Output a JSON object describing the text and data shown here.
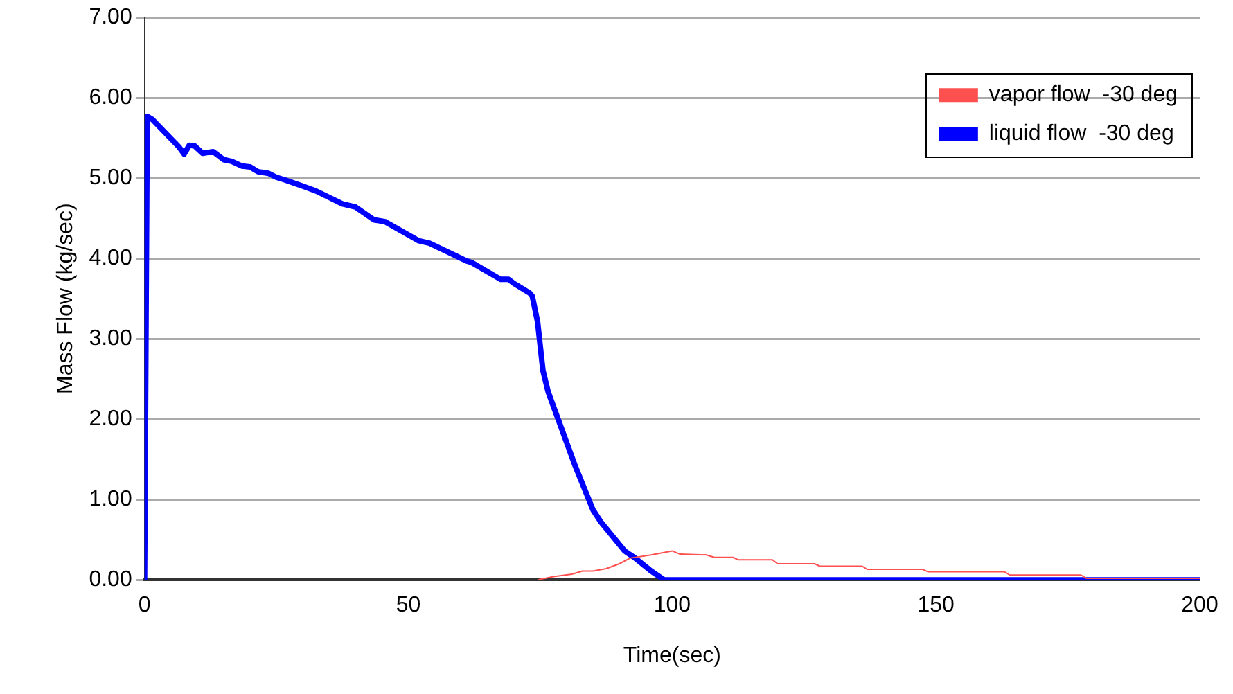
{
  "chart_data": {
    "type": "line",
    "xlabel": "Time(sec)",
    "ylabel": "Mass Flow (kg/sec)",
    "xlim": [
      0,
      200
    ],
    "xticks": [
      0,
      50,
      100,
      150,
      200
    ],
    "ylim": [
      0,
      7
    ],
    "yticks": [
      {
        "value": 0,
        "label": "0.00"
      },
      {
        "value": 1,
        "label": "1.00"
      },
      {
        "value": 2,
        "label": "2.00"
      },
      {
        "value": 3,
        "label": "3.00"
      },
      {
        "value": 4,
        "label": "4.00"
      },
      {
        "value": 5,
        "label": "5.00"
      },
      {
        "value": 6,
        "label": "6.00"
      },
      {
        "value": 7,
        "label": "7.00"
      }
    ],
    "grid": "y",
    "legend": "top right",
    "marker": "none",
    "line_style": "solid",
    "series": [
      {
        "name": "vapor flow  -30 deg",
        "color": "#ff5050",
        "x": [
          74.5,
          77.5,
          81,
          83,
          85,
          87.5,
          90,
          92,
          96,
          100,
          101.5,
          106.5,
          108,
          111.5,
          112.5,
          119,
          120,
          127,
          128,
          136,
          137,
          147.5,
          148.5,
          163,
          164,
          177.5,
          178.5,
          200
        ],
        "values": [
          0,
          0.04,
          0.07,
          0.11,
          0.11,
          0.14,
          0.2,
          0.27,
          0.31,
          0.36,
          0.32,
          0.31,
          0.28,
          0.28,
          0.25,
          0.25,
          0.2,
          0.2,
          0.17,
          0.17,
          0.13,
          0.13,
          0.1,
          0.1,
          0.06,
          0.06,
          0.02,
          0.02
        ]
      },
      {
        "name": "liquid flow  -30 deg",
        "color": "#0000ff",
        "x": [
          0,
          0.5,
          1.5,
          6.5,
          7.5,
          8.5,
          9.5,
          11,
          13,
          15,
          16.5,
          18.5,
          20,
          21.5,
          23.5,
          25,
          26.5,
          30,
          32.5,
          37.5,
          40,
          43.5,
          45.5,
          52,
          54,
          61,
          62,
          67.5,
          69,
          70,
          73,
          73.5,
          74.5,
          75.5,
          76.5,
          79.5,
          81.5,
          85,
          86.5,
          91,
          93,
          96,
          98.5,
          200
        ],
        "values": [
          0,
          5.77,
          5.73,
          5.39,
          5.3,
          5.41,
          5.4,
          5.31,
          5.33,
          5.23,
          5.21,
          5.15,
          5.14,
          5.08,
          5.06,
          5.01,
          4.98,
          4.9,
          4.84,
          4.68,
          4.64,
          4.48,
          4.46,
          4.22,
          4.19,
          3.97,
          3.95,
          3.74,
          3.74,
          3.69,
          3.57,
          3.53,
          3.21,
          2.61,
          2.34,
          1.8,
          1.44,
          0.87,
          0.72,
          0.36,
          0.27,
          0.11,
          0,
          0
        ]
      }
    ]
  }
}
